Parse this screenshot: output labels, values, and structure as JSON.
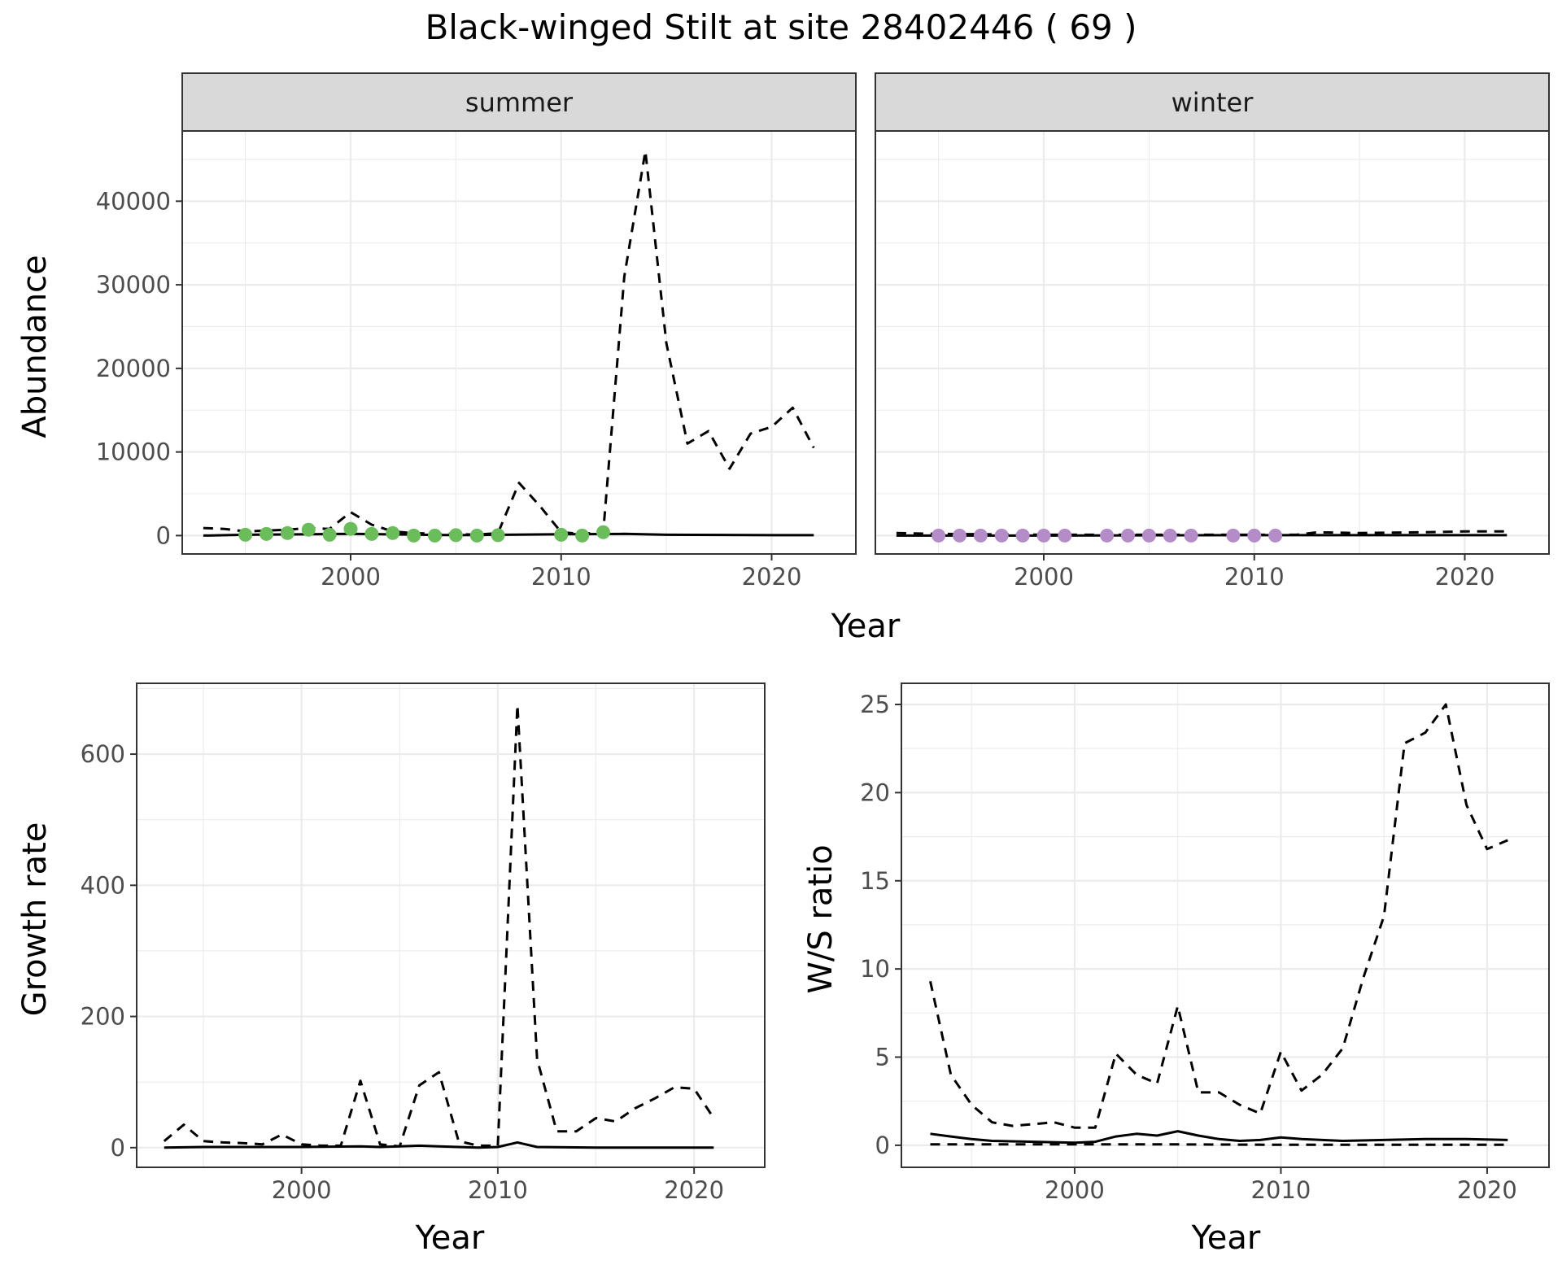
{
  "title": "Black-winged Stilt at site 28402446 ( 69 )",
  "colors": {
    "summer_points": "#6bbd5b",
    "winter_points": "#b48cc8",
    "lines": "#000000",
    "strip": "#d9d9d9"
  },
  "chart_data": [
    {
      "id": "summer",
      "type": "line",
      "facet_label": "summer",
      "xlabel": "Year",
      "ylabel": "Abundance",
      "xlim": [
        1992,
        2024
      ],
      "ylim": [
        -2200,
        48400
      ],
      "x_ticks": [
        2000,
        2010,
        2020
      ],
      "y_ticks": [
        0,
        10000,
        20000,
        30000,
        40000
      ],
      "grid": true,
      "series": [
        {
          "style": "dashed",
          "x": [
            1993,
            1994,
            1995,
            1996,
            1997,
            1998,
            1999,
            2000,
            2001,
            2002,
            2003,
            2004,
            2005,
            2006,
            2007,
            2008,
            2009,
            2010,
            2011,
            2012,
            2013,
            2014,
            2015,
            2016,
            2017,
            2018,
            2019,
            2020,
            2021,
            2022
          ],
          "y": [
            900,
            800,
            500,
            600,
            700,
            900,
            800,
            2800,
            1300,
            500,
            300,
            200,
            200,
            100,
            300,
            6300,
            3500,
            400,
            200,
            400,
            31000,
            46000,
            23000,
            11000,
            12500,
            8000,
            12200,
            13000,
            15300,
            10500
          ]
        },
        {
          "style": "solid",
          "x": [
            1993,
            1995,
            2000,
            2005,
            2010,
            2013,
            2015,
            2020,
            2022
          ],
          "y": [
            0,
            100,
            200,
            50,
            150,
            200,
            100,
            50,
            50
          ]
        },
        {
          "style": "points",
          "x": [
            1995,
            1996,
            1997,
            1998,
            1999,
            2000,
            2001,
            2002,
            2003,
            2004,
            2005,
            2006,
            2007,
            2010,
            2011,
            2012
          ],
          "y": [
            100,
            200,
            300,
            700,
            100,
            800,
            200,
            300,
            0,
            0,
            50,
            0,
            50,
            100,
            0,
            400
          ]
        }
      ]
    },
    {
      "id": "winter",
      "type": "line",
      "facet_label": "winter",
      "xlabel": "Year",
      "ylabel": "Abundance",
      "xlim": [
        1992,
        2024
      ],
      "ylim": [
        -2200,
        48400
      ],
      "x_ticks": [
        2000,
        2010,
        2020
      ],
      "y_ticks": [
        0,
        10000,
        20000,
        30000,
        40000
      ],
      "grid": true,
      "series": [
        {
          "style": "dashed",
          "x": [
            1993,
            1995,
            2000,
            2005,
            2010,
            2012,
            2013,
            2015,
            2018,
            2020,
            2022
          ],
          "y": [
            300,
            200,
            100,
            100,
            100,
            100,
            400,
            300,
            400,
            500,
            500
          ]
        },
        {
          "style": "solid",
          "x": [
            1993,
            2000,
            2010,
            2022
          ],
          "y": [
            0,
            0,
            50,
            50
          ]
        },
        {
          "style": "points",
          "x": [
            1995,
            1996,
            1997,
            1998,
            1999,
            2000,
            2001,
            2003,
            2004,
            2005,
            2006,
            2007,
            2009,
            2010,
            2011
          ],
          "y": [
            0,
            0,
            0,
            0,
            0,
            0,
            0,
            0,
            0,
            0,
            0,
            0,
            0,
            0,
            0
          ]
        }
      ]
    },
    {
      "id": "growth",
      "type": "line",
      "xlabel": "Year",
      "ylabel": "Growth rate",
      "xlim": [
        1991.6,
        2023.6
      ],
      "ylim": [
        -30,
        708
      ],
      "x_ticks": [
        2000,
        2010,
        2020
      ],
      "y_ticks": [
        0,
        200,
        400,
        600
      ],
      "grid": true,
      "series": [
        {
          "style": "dashed",
          "x": [
            1993,
            1994,
            1995,
            1996,
            1997,
            1998,
            1999,
            2000,
            2001,
            2002,
            2003,
            2004,
            2005,
            2006,
            2007,
            2008,
            2009,
            2010,
            2011,
            2012,
            2013,
            2014,
            2015,
            2016,
            2017,
            2018,
            2019,
            2020,
            2021
          ],
          "y": [
            10,
            35,
            10,
            8,
            7,
            5,
            20,
            5,
            3,
            3,
            102,
            5,
            2,
            95,
            115,
            10,
            3,
            3,
            675,
            135,
            25,
            25,
            45,
            40,
            60,
            75,
            92,
            90,
            45
          ]
        },
        {
          "style": "solid",
          "x": [
            1993,
            1995,
            2000,
            2003,
            2004,
            2006,
            2007,
            2009,
            2010,
            2011,
            2012,
            2015,
            2021
          ],
          "y": [
            0,
            1,
            1,
            2,
            1,
            3,
            2,
            0,
            1,
            8,
            1,
            0,
            0
          ]
        }
      ]
    },
    {
      "id": "ws",
      "type": "line",
      "xlabel": "Year",
      "ylabel": "W/S ratio",
      "xlim": [
        1991.6,
        2023
      ],
      "ylim": [
        -1.25,
        26.2
      ],
      "x_ticks": [
        2000,
        2010,
        2020
      ],
      "y_ticks": [
        0,
        5,
        10,
        15,
        20,
        25
      ],
      "grid": true,
      "series": [
        {
          "style": "dashed",
          "x": [
            1993,
            1994,
            1995,
            1996,
            1997,
            1998,
            1999,
            2000,
            2001,
            2002,
            2003,
            2004,
            2005,
            2006,
            2007,
            2008,
            2009,
            2010,
            2011,
            2012,
            2013,
            2014,
            2015,
            2016,
            2017,
            2018,
            2019,
            2020,
            2021
          ],
          "y": [
            9.3,
            4,
            2.3,
            1.3,
            1.1,
            1.2,
            1.3,
            1.0,
            1.0,
            5.2,
            4.0,
            3.5,
            7.9,
            3.0,
            3.0,
            2.3,
            1.8,
            5.3,
            3.1,
            4.0,
            5.5,
            9.5,
            13.0,
            22.8,
            23.4,
            25.0,
            19.3,
            16.8,
            17.3
          ]
        },
        {
          "style": "solid",
          "x": [
            1993,
            1994,
            1995,
            1996,
            1998,
            2000,
            2001,
            2002,
            2003,
            2004,
            2005,
            2006,
            2007,
            2008,
            2009,
            2010,
            2011,
            2013,
            2015,
            2017,
            2019,
            2021
          ],
          "y": [
            0.65,
            0.5,
            0.35,
            0.25,
            0.2,
            0.15,
            0.2,
            0.5,
            0.65,
            0.55,
            0.8,
            0.55,
            0.35,
            0.25,
            0.3,
            0.45,
            0.35,
            0.25,
            0.3,
            0.35,
            0.35,
            0.3
          ]
        },
        {
          "style": "dashed",
          "x": [
            1993,
            2000,
            2005,
            2010,
            2015,
            2021
          ],
          "y": [
            0.05,
            0.05,
            0.05,
            0.03,
            0.03,
            0.03
          ]
        }
      ]
    }
  ]
}
